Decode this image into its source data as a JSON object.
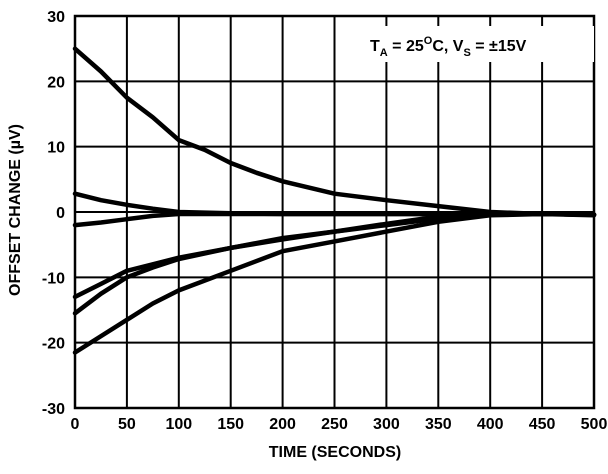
{
  "chart_data": {
    "type": "line",
    "xlabel": "TIME (SECONDS)",
    "ylabel": "OFFSET CHANGE (µV)",
    "xlim": [
      0,
      500
    ],
    "ylim": [
      -30,
      30
    ],
    "xticks": [
      0,
      50,
      100,
      150,
      200,
      250,
      300,
      350,
      400,
      450,
      500
    ],
    "yticks": [
      -30,
      -20,
      -10,
      0,
      10,
      20,
      30
    ],
    "xtick_labels": [
      "0",
      "50",
      "100",
      "150",
      "200",
      "250",
      "300",
      "350",
      "400",
      "450",
      "500"
    ],
    "ytick_labels": [
      "-30",
      "-20",
      "-10",
      "0",
      "10",
      "20",
      "30"
    ],
    "grid": true,
    "annotation": {
      "t": "T",
      "t_sub": "A",
      "mid1": " = 25",
      "deg_sup": "O",
      "mid2": "C, V",
      "v_sub": "S",
      "tail": " = ±15V"
    },
    "series": [
      {
        "x": [
          0,
          25,
          50,
          75,
          100,
          125,
          150,
          175,
          200,
          250,
          300,
          350,
          400,
          450,
          500
        ],
        "y": [
          25,
          21.5,
          17.5,
          14.5,
          11,
          9.5,
          7.5,
          6,
          4.7,
          2.8,
          1.8,
          0.9,
          0,
          -0.3,
          -0.5
        ]
      },
      {
        "x": [
          0,
          25,
          50,
          75,
          100,
          150,
          200,
          300,
          400,
          450,
          500
        ],
        "y": [
          2.8,
          1.8,
          1.1,
          0.5,
          0,
          -0.2,
          -0.3,
          -0.3,
          -0.3,
          -0.3,
          -0.4
        ]
      },
      {
        "x": [
          0,
          25,
          50,
          75,
          100,
          150,
          200,
          300,
          400,
          450,
          500
        ],
        "y": [
          -2,
          -1.6,
          -1.1,
          -0.6,
          -0.3,
          -0.3,
          -0.3,
          -0.3,
          -0.3,
          -0.3,
          -0.4
        ]
      },
      {
        "x": [
          0,
          25,
          50,
          75,
          100,
          150,
          200,
          250,
          300,
          350,
          400,
          450,
          500
        ],
        "y": [
          -13,
          -11,
          -9,
          -8,
          -7,
          -5.5,
          -4,
          -3,
          -2,
          -1,
          -0.4,
          -0.3,
          -0.4
        ]
      },
      {
        "x": [
          0,
          25,
          50,
          75,
          100,
          150,
          200,
          250,
          300,
          350,
          400,
          450,
          500
        ],
        "y": [
          -15.5,
          -12.5,
          -10,
          -8.5,
          -7.2,
          -5.5,
          -4.2,
          -3,
          -1.8,
          -0.7,
          -0.3,
          -0.3,
          -0.4
        ]
      },
      {
        "x": [
          0,
          25,
          50,
          75,
          100,
          150,
          200,
          250,
          300,
          350,
          400,
          450,
          500
        ],
        "y": [
          -21.5,
          -19,
          -16.5,
          -14,
          -12,
          -9,
          -6,
          -4.5,
          -3,
          -1.5,
          -0.5,
          -0.3,
          -0.4
        ]
      }
    ]
  }
}
